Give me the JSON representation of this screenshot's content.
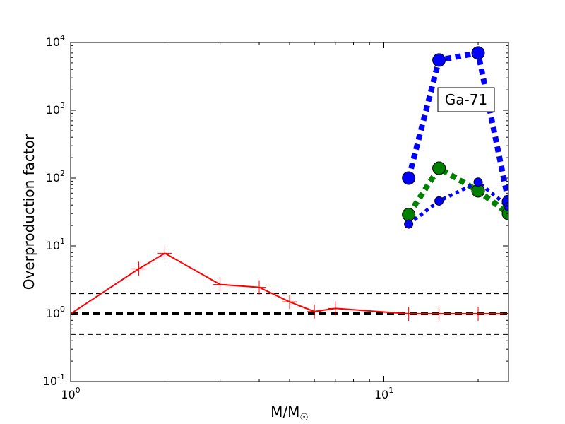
{
  "chart_data": {
    "type": "line",
    "xscale": "log",
    "yscale": "log",
    "xlim": [
      1,
      25
    ],
    "ylim": [
      0.1,
      10000
    ],
    "xlabel": "M/M",
    "xlabel_subscript": "☉",
    "ylabel": "Overproduction factor",
    "annotation": "Ga-71",
    "x_ticks": [
      {
        "value": 1,
        "base": "10",
        "exp": "0"
      },
      {
        "value": 10,
        "base": "10",
        "exp": "1"
      }
    ],
    "y_ticks": [
      {
        "value": 0.1,
        "base": "10",
        "exp": "-1"
      },
      {
        "value": 1,
        "base": "10",
        "exp": "0"
      },
      {
        "value": 10,
        "base": "10",
        "exp": "1"
      },
      {
        "value": 100,
        "base": "10",
        "exp": "2"
      },
      {
        "value": 1000,
        "base": "10",
        "exp": "3"
      },
      {
        "value": 10000,
        "base": "10",
        "exp": "4"
      }
    ],
    "reference_lines": [
      {
        "y": 2.0,
        "style": "dashed",
        "color": "#000000"
      },
      {
        "y": 1.0,
        "style": "thick-dashed",
        "color": "#000000"
      },
      {
        "y": 0.5,
        "style": "dashed",
        "color": "#000000"
      }
    ],
    "series": [
      {
        "color": "#ff0000",
        "line": "solid",
        "marker": "plus",
        "x": [
          1.0,
          1.65,
          2.0,
          3.0,
          4.0,
          5.0,
          6.0,
          7.0,
          12.0,
          15.0,
          20.0,
          25.0
        ],
        "y": [
          1.0,
          4.6,
          7.8,
          2.7,
          2.45,
          1.5,
          1.08,
          1.2,
          1.0,
          1.0,
          1.0,
          1.0
        ]
      },
      {
        "color": "#0000ff",
        "line": "thick-dotted",
        "marker": "circle-large",
        "x": [
          12.0,
          15.0,
          20.0,
          25.0
        ],
        "y": [
          100,
          5500,
          7000,
          45
        ]
      },
      {
        "color": "#008000",
        "line": "thick-dotted",
        "marker": "circle-large",
        "x": [
          12.0,
          15.0,
          20.0,
          25.0
        ],
        "y": [
          29,
          140,
          65,
          30
        ]
      },
      {
        "color": "#0000ff",
        "line": "dotted",
        "marker": "circle-small",
        "x": [
          12.0,
          15.0,
          20.0,
          25.0
        ],
        "y": [
          21,
          46,
          87,
          38
        ]
      }
    ]
  }
}
